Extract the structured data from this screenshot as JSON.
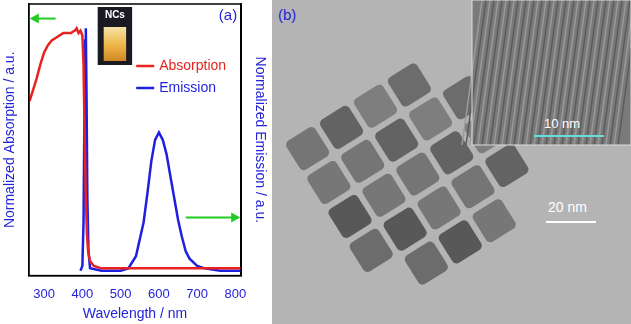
{
  "chart_data": {
    "type": "line",
    "annotations": [
      "(a)",
      "NCs"
    ],
    "x_label": "Wavelength / nm",
    "y_label": "Normalized Absorption / a.u.",
    "y2_label": "Normalized Emission / a.u.",
    "xlim": [
      260,
      815
    ],
    "xticks": [
      300,
      400,
      500,
      600,
      700,
      800
    ],
    "ylim": [
      -0.02,
      1.1
    ],
    "y2lim": [
      -0.02,
      1.1
    ],
    "tick_labels": "x",
    "grid": false,
    "legend": "upper right",
    "series": [
      {
        "name": "Absorption",
        "color": "#e8231f",
        "axis": "y",
        "x": [
          262,
          270,
          280,
          290,
          300,
          310,
          320,
          330,
          340,
          350,
          360,
          370,
          380,
          385,
          390,
          395,
          400,
          403,
          406,
          409,
          412,
          415,
          420,
          430,
          450,
          500,
          600,
          700,
          815
        ],
        "values": [
          0.7,
          0.74,
          0.79,
          0.85,
          0.9,
          0.93,
          0.95,
          0.96,
          0.97,
          0.98,
          0.98,
          0.98,
          0.99,
          1.0,
          0.98,
          0.99,
          0.97,
          0.85,
          0.55,
          0.3,
          0.15,
          0.08,
          0.04,
          0.02,
          0.01,
          0.01,
          0.01,
          0.01,
          0.01
        ]
      },
      {
        "name": "Emission",
        "color": "#1f1fe0",
        "axis": "y2",
        "x": [
          395,
          400,
          403,
          405,
          407,
          409,
          411,
          413,
          416,
          420,
          450,
          500,
          520,
          540,
          560,
          570,
          580,
          590,
          600,
          610,
          620,
          630,
          640,
          650,
          660,
          670,
          680,
          700,
          720,
          760,
          815
        ],
        "values": [
          0,
          0.02,
          0.2,
          0.6,
          0.95,
          1.0,
          0.7,
          0.3,
          0.08,
          0.01,
          0,
          0,
          0.01,
          0.06,
          0.2,
          0.32,
          0.45,
          0.54,
          0.57,
          0.54,
          0.48,
          0.39,
          0.3,
          0.21,
          0.14,
          0.08,
          0.05,
          0.02,
          0.01,
          0,
          0
        ]
      }
    ]
  },
  "image_panel": {
    "label": "(b)",
    "scale_bars": [
      "20 nm",
      "10 nm"
    ]
  }
}
